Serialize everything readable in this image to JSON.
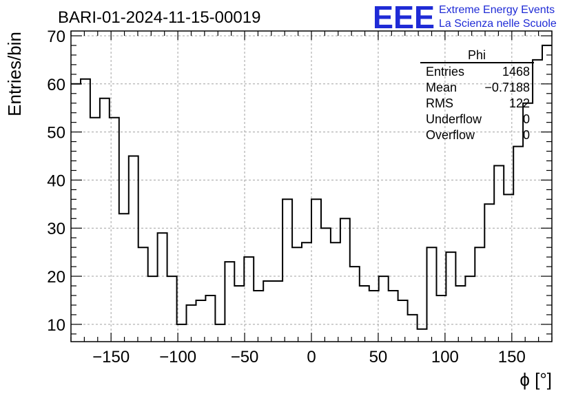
{
  "header": {
    "run_title": "BARI-01-2024-11-15-00019",
    "logo_text": "EEE",
    "logo_line1": "Extreme Energy Events",
    "logo_line2": "La Scienza nelle Scuole",
    "logo_color": "#1f2bd6"
  },
  "stats_box": {
    "title": "Phi",
    "rows": [
      {
        "label": "Entries",
        "value": "1468"
      },
      {
        "label": "Mean",
        "value": "−0.7188"
      },
      {
        "label": "RMS",
        "value": "122"
      },
      {
        "label": "Underflow",
        "value": "0"
      },
      {
        "label": "Overflow",
        "value": "0"
      }
    ]
  },
  "chart_data": {
    "type": "histogram",
    "title": "",
    "xlabel": "ϕ [°]",
    "ylabel": "Entries/bin",
    "xlim": [
      -180,
      180
    ],
    "ylim": [
      6.4,
      71
    ],
    "grid": true,
    "legend": "stats box top-right",
    "bin_width": 7.2,
    "bin_edges_start": -180,
    "x_ticks": [
      -150,
      -100,
      -50,
      0,
      50,
      100,
      150
    ],
    "x_tick_labels": [
      "−150",
      "−100",
      "−50",
      "0",
      "50",
      "100",
      "150"
    ],
    "y_ticks": [
      10,
      20,
      30,
      40,
      50,
      60,
      70
    ],
    "y_tick_labels": [
      "10",
      "20",
      "30",
      "40",
      "50",
      "60",
      "70"
    ],
    "values": [
      60,
      61,
      53,
      57,
      53,
      33,
      45,
      26,
      20,
      29,
      20,
      10,
      14,
      15,
      16,
      10,
      23,
      18,
      24,
      17,
      19,
      19,
      36,
      26,
      27,
      36,
      30,
      27,
      32,
      22,
      18,
      17,
      20,
      17,
      15,
      12,
      9,
      26,
      16,
      25,
      18,
      20,
      26,
      35,
      43,
      37,
      47,
      56,
      65,
      68
    ],
    "line_color": "#000000",
    "grid_color": "#a0a0a0"
  }
}
